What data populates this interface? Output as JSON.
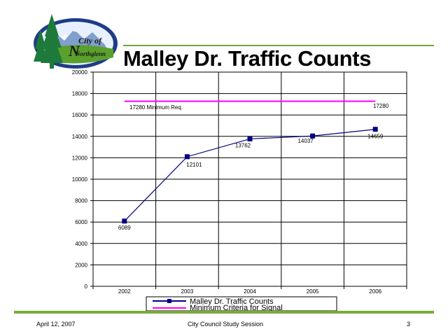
{
  "slide": {
    "title": "Malley Dr. Traffic Counts",
    "logo_text_top": "City of",
    "logo_text_bottom": "Northglenn",
    "logo_initial": "N"
  },
  "footer": {
    "date": "April 12, 2007",
    "session": "City Council Study Session",
    "page_number": "3"
  },
  "colors": {
    "rule": "#7aaa3a",
    "series_counts": "#000080",
    "series_minimum": "#ff00ff"
  },
  "chart_data": {
    "type": "line",
    "categories": [
      "2002",
      "2003",
      "2004",
      "2005",
      "2006"
    ],
    "ylim": [
      0,
      20000
    ],
    "yticks": [
      0,
      2000,
      4000,
      6000,
      8000,
      10000,
      12000,
      14000,
      16000,
      18000,
      20000
    ],
    "grid": true,
    "legend_position": "bottom",
    "series": [
      {
        "name": "Malley Dr. Traffic Counts",
        "values": [
          6089,
          12101,
          13762,
          14037,
          14659
        ],
        "labels": [
          "6089",
          "12101",
          "13762",
          "14037",
          "14659"
        ]
      },
      {
        "name": "Minimum Criteria for Signal",
        "values": [
          17280,
          17280,
          17280,
          17280,
          17280
        ]
      }
    ],
    "annotations": [
      {
        "text": "17280 Minimum Req."
      },
      {
        "text": "17280"
      }
    ]
  }
}
